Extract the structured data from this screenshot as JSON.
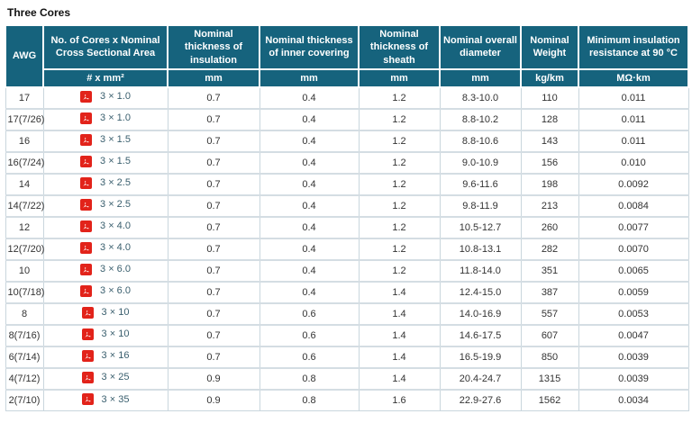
{
  "page_title": "Three Cores",
  "colors": {
    "header_bg": "#16637d",
    "header_text": "#ffffff",
    "pdf_red": "#e2231a",
    "link_text": "#3a5f6e",
    "border_light": "#c9d6dd",
    "border_outer": "#9db9c6",
    "cell_text": "#333333"
  },
  "table": {
    "awg_header": "AWG",
    "column_groups": [
      {
        "label": "No. of Cores x Nominal Cross Sectional Area",
        "unit": "# x mm²"
      },
      {
        "label": "Nominal thickness of insulation",
        "unit": "mm"
      },
      {
        "label": "Nominal thickness of inner covering",
        "unit": "mm"
      },
      {
        "label": "Nominal thickness of sheath",
        "unit": "mm"
      },
      {
        "label": "Nominal overall diameter",
        "unit": "mm"
      },
      {
        "label": "Nominal Weight",
        "unit": "kg/km"
      },
      {
        "label": "Minimum insulation resistance at 90 °C",
        "unit": "MΩ·km"
      }
    ],
    "pdf_icon_name": "pdf-icon",
    "rows": [
      {
        "awg": "17",
        "size": "3 × 1.0",
        "insulation": "0.7",
        "inner": "0.4",
        "sheath": "1.2",
        "diameter": "8.3-10.0",
        "weight": "110",
        "resistance": "0.011"
      },
      {
        "awg": "17(7/26)",
        "size": "3 × 1.0",
        "insulation": "0.7",
        "inner": "0.4",
        "sheath": "1.2",
        "diameter": "8.8-10.2",
        "weight": "128",
        "resistance": "0.011"
      },
      {
        "awg": "16",
        "size": "3 × 1.5",
        "insulation": "0.7",
        "inner": "0.4",
        "sheath": "1.2",
        "diameter": "8.8-10.6",
        "weight": "143",
        "resistance": "0.011"
      },
      {
        "awg": "16(7/24)",
        "size": "3 × 1.5",
        "insulation": "0.7",
        "inner": "0.4",
        "sheath": "1.2",
        "diameter": "9.0-10.9",
        "weight": "156",
        "resistance": "0.010"
      },
      {
        "awg": "14",
        "size": "3 × 2.5",
        "insulation": "0.7",
        "inner": "0.4",
        "sheath": "1.2",
        "diameter": "9.6-11.6",
        "weight": "198",
        "resistance": "0.0092"
      },
      {
        "awg": "14(7/22)",
        "size": "3 × 2.5",
        "insulation": "0.7",
        "inner": "0.4",
        "sheath": "1.2",
        "diameter": "9.8-11.9",
        "weight": "213",
        "resistance": "0.0084"
      },
      {
        "awg": "12",
        "size": "3 × 4.0",
        "insulation": "0.7",
        "inner": "0.4",
        "sheath": "1.2",
        "diameter": "10.5-12.7",
        "weight": "260",
        "resistance": "0.0077"
      },
      {
        "awg": "12(7/20)",
        "size": "3 × 4.0",
        "insulation": "0.7",
        "inner": "0.4",
        "sheath": "1.2",
        "diameter": "10.8-13.1",
        "weight": "282",
        "resistance": "0.0070"
      },
      {
        "awg": "10",
        "size": "3 × 6.0",
        "insulation": "0.7",
        "inner": "0.4",
        "sheath": "1.2",
        "diameter": "11.8-14.0",
        "weight": "351",
        "resistance": "0.0065"
      },
      {
        "awg": "10(7/18)",
        "size": "3 × 6.0",
        "insulation": "0.7",
        "inner": "0.4",
        "sheath": "1.4",
        "diameter": "12.4-15.0",
        "weight": "387",
        "resistance": "0.0059"
      },
      {
        "awg": "8",
        "size": "3 × 10",
        "insulation": "0.7",
        "inner": "0.6",
        "sheath": "1.4",
        "diameter": "14.0-16.9",
        "weight": "557",
        "resistance": "0.0053"
      },
      {
        "awg": "8(7/16)",
        "size": "3 × 10",
        "insulation": "0.7",
        "inner": "0.6",
        "sheath": "1.4",
        "diameter": "14.6-17.5",
        "weight": "607",
        "resistance": "0.0047"
      },
      {
        "awg": "6(7/14)",
        "size": "3 × 16",
        "insulation": "0.7",
        "inner": "0.6",
        "sheath": "1.4",
        "diameter": "16.5-19.9",
        "weight": "850",
        "resistance": "0.0039"
      },
      {
        "awg": "4(7/12)",
        "size": "3 × 25",
        "insulation": "0.9",
        "inner": "0.8",
        "sheath": "1.4",
        "diameter": "20.4-24.7",
        "weight": "1315",
        "resistance": "0.0039"
      },
      {
        "awg": "2(7/10)",
        "size": "3 × 35",
        "insulation": "0.9",
        "inner": "0.8",
        "sheath": "1.6",
        "diameter": "22.9-27.6",
        "weight": "1562",
        "resistance": "0.0034"
      }
    ]
  }
}
